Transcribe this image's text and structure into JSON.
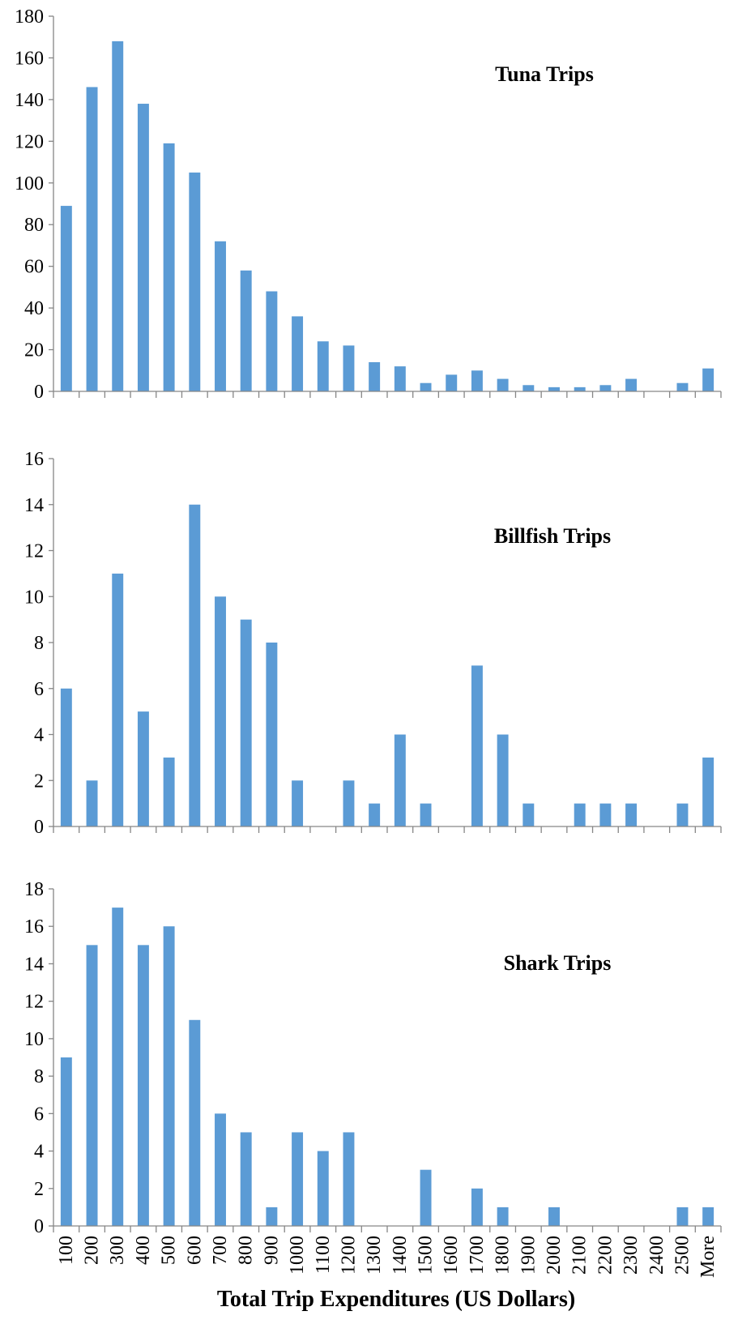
{
  "chart_data": [
    {
      "type": "bar",
      "title": "Tuna Trips",
      "categories": [
        "100",
        "200",
        "300",
        "400",
        "500",
        "600",
        "700",
        "800",
        "900",
        "1000",
        "1100",
        "1200",
        "1300",
        "1400",
        "1500",
        "1600",
        "1700",
        "1800",
        "1900",
        "2000",
        "2100",
        "2200",
        "2300",
        "2400",
        "2500",
        "More"
      ],
      "values": [
        89,
        146,
        168,
        138,
        119,
        105,
        72,
        58,
        48,
        36,
        24,
        22,
        14,
        12,
        4,
        8,
        10,
        6,
        3,
        2,
        2,
        3,
        6,
        0,
        4,
        11
      ],
      "ylim": [
        0,
        180
      ],
      "yticks": [
        0,
        20,
        40,
        60,
        80,
        100,
        120,
        140,
        160,
        180
      ],
      "color": "#5B9BD5",
      "grid": false,
      "show_x_tick_labels": false
    },
    {
      "type": "bar",
      "title": "Billfish Trips",
      "categories": [
        "100",
        "200",
        "300",
        "400",
        "500",
        "600",
        "700",
        "800",
        "900",
        "1000",
        "1100",
        "1200",
        "1300",
        "1400",
        "1500",
        "1600",
        "1700",
        "1800",
        "1900",
        "2000",
        "2100",
        "2200",
        "2300",
        "2400",
        "2500",
        "More"
      ],
      "values": [
        6,
        2,
        11,
        5,
        3,
        14,
        10,
        9,
        8,
        2,
        0,
        2,
        1,
        4,
        1,
        0,
        7,
        4,
        1,
        0,
        1,
        1,
        1,
        0,
        1,
        3
      ],
      "ylim": [
        0,
        16
      ],
      "yticks": [
        0,
        2,
        4,
        6,
        8,
        10,
        12,
        14,
        16
      ],
      "color": "#5B9BD5",
      "grid": false,
      "show_x_tick_labels": false
    },
    {
      "type": "bar",
      "title": "Shark Trips",
      "categories": [
        "100",
        "200",
        "300",
        "400",
        "500",
        "600",
        "700",
        "800",
        "900",
        "1000",
        "1100",
        "1200",
        "1300",
        "1400",
        "1500",
        "1600",
        "1700",
        "1800",
        "1900",
        "2000",
        "2100",
        "2200",
        "2300",
        "2400",
        "2500",
        "More"
      ],
      "values": [
        9,
        15,
        17,
        15,
        16,
        11,
        6,
        5,
        1,
        5,
        4,
        5,
        0,
        0,
        3,
        0,
        2,
        1,
        0,
        1,
        0,
        0,
        0,
        0,
        1,
        1
      ],
      "ylim": [
        0,
        18
      ],
      "yticks": [
        0,
        2,
        4,
        6,
        8,
        10,
        12,
        14,
        16,
        18
      ],
      "color": "#5B9BD5",
      "grid": false,
      "show_x_tick_labels": true,
      "xlabel": "Total Trip Expenditures (US Dollars)"
    }
  ]
}
